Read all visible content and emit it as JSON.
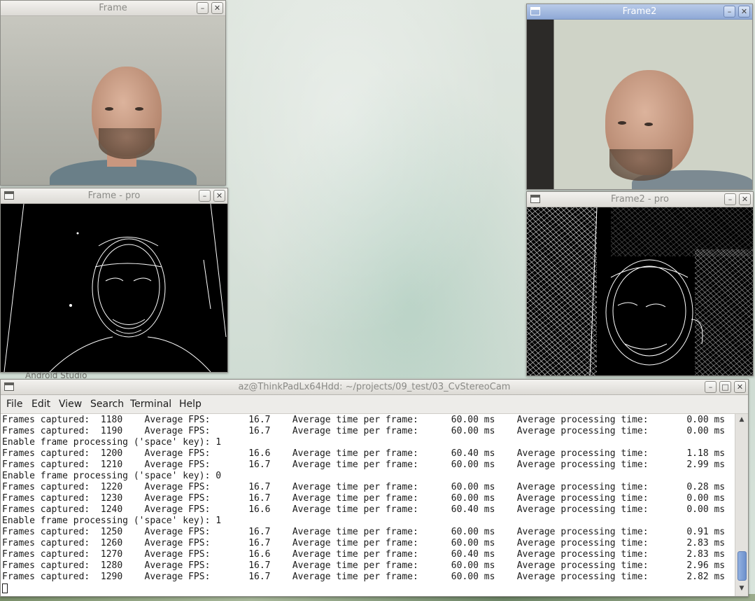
{
  "desktop": {
    "peek_text": "Android Studio"
  },
  "windows": {
    "frame": {
      "title": "Frame"
    },
    "frame_pro": {
      "title": "Frame - pro"
    },
    "frame2": {
      "title": "Frame2"
    },
    "frame2_pro": {
      "title": "Frame2 - pro"
    },
    "terminal": {
      "title": "az@ThinkPadLx64Hdd: ~/projects/09_test/03_CvStereoCam",
      "menu": [
        "File",
        "Edit",
        "View",
        "Search",
        "Terminal",
        "Help"
      ],
      "lines": [
        "Frames captured:  1180    Average FPS:       16.7    Average time per frame:      60.00 ms    Average processing time:       0.00 ms",
        "Frames captured:  1190    Average FPS:       16.7    Average time per frame:      60.00 ms    Average processing time:       0.00 ms",
        "Enable frame processing ('space' key): 1",
        "Frames captured:  1200    Average FPS:       16.6    Average time per frame:      60.40 ms    Average processing time:       1.18 ms",
        "Frames captured:  1210    Average FPS:       16.7    Average time per frame:      60.00 ms    Average processing time:       2.99 ms",
        "Enable frame processing ('space' key): 0",
        "Frames captured:  1220    Average FPS:       16.7    Average time per frame:      60.00 ms    Average processing time:       0.28 ms",
        "Frames captured:  1230    Average FPS:       16.7    Average time per frame:      60.00 ms    Average processing time:       0.00 ms",
        "Frames captured:  1240    Average FPS:       16.6    Average time per frame:      60.40 ms    Average processing time:       0.00 ms",
        "Enable frame processing ('space' key): 1",
        "Frames captured:  1250    Average FPS:       16.7    Average time per frame:      60.00 ms    Average processing time:       0.91 ms",
        "Frames captured:  1260    Average FPS:       16.7    Average time per frame:      60.00 ms    Average processing time:       2.83 ms",
        "Frames captured:  1270    Average FPS:       16.6    Average time per frame:      60.40 ms    Average processing time:       2.83 ms",
        "Frames captured:  1280    Average FPS:       16.7    Average time per frame:      60.00 ms    Average processing time:       2.96 ms",
        "Frames captured:  1290    Average FPS:       16.7    Average time per frame:      60.00 ms    Average processing time:       2.82 ms"
      ]
    }
  },
  "glyphs": {
    "minimize": "–",
    "maximize": "□",
    "close": "✕",
    "scroll_up": "▲",
    "scroll_down": "▼"
  }
}
